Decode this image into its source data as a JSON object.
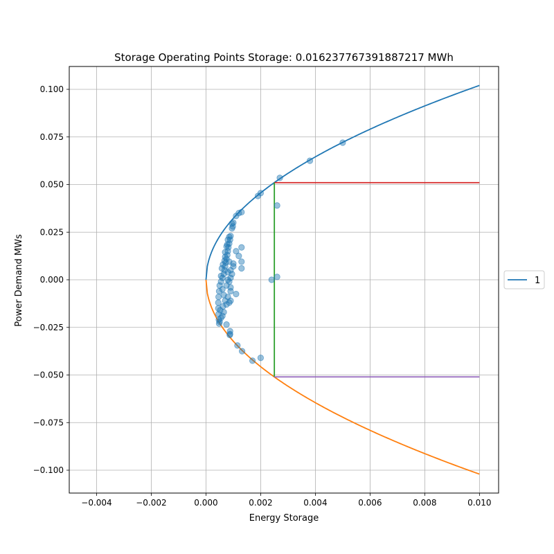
{
  "chart_data": {
    "type": "scatter",
    "title": "Storage Operating Points Storage: 0.016237767391887217 MWh",
    "xlabel": "Energy Storage",
    "ylabel": "Power Demand MWs",
    "xlim": [
      -0.005,
      0.0107
    ],
    "ylim": [
      -0.112,
      0.112
    ],
    "grid": true,
    "legend_position": "outside-right",
    "x_ticks": [
      -0.004,
      -0.002,
      0.0,
      0.002,
      0.004,
      0.006,
      0.008,
      0.01
    ],
    "x_tick_labels": [
      "−0.004",
      "−0.002",
      "0.000",
      "0.002",
      "0.004",
      "0.006",
      "0.008",
      "0.010"
    ],
    "y_ticks": [
      0.1,
      0.075,
      0.05,
      0.025,
      0.0,
      -0.025,
      -0.05,
      -0.075,
      -0.1
    ],
    "y_tick_labels": [
      "0.100",
      "0.075",
      "0.050",
      "0.025",
      "0.000",
      "−0.025",
      "−0.050",
      "−0.075",
      "−0.100"
    ],
    "legend": [
      {
        "label": "1",
        "color": "#1f77b4"
      }
    ],
    "curves": [
      {
        "color": "#1f77b4",
        "formula": "y = 1.0206*sqrt(x)",
        "x_range": [
          0.0,
          0.01
        ]
      },
      {
        "color": "#ff7f0e",
        "formula": "y = -1.0206*sqrt(x)",
        "x_range": [
          0.0,
          0.01
        ]
      }
    ],
    "lines": [
      {
        "color": "#d62728",
        "points": [
          [
            0.0025,
            0.051
          ],
          [
            0.01,
            0.051
          ]
        ]
      },
      {
        "color": "#2ca02c",
        "points": [
          [
            0.0025,
            0.051
          ],
          [
            0.0025,
            -0.051
          ]
        ]
      },
      {
        "color": "#9467bd",
        "points": [
          [
            0.0025,
            -0.051
          ],
          [
            0.01,
            -0.051
          ]
        ]
      }
    ],
    "scatter": {
      "color": "#1f77b4",
      "points": [
        [
          0.005,
          0.072
        ],
        [
          0.0038,
          0.0625
        ],
        [
          0.0027,
          0.0535
        ],
        [
          0.002,
          0.0455
        ],
        [
          0.0019,
          0.044
        ],
        [
          0.0026,
          0.039
        ],
        [
          0.0013,
          0.0355
        ],
        [
          0.0012,
          0.035
        ],
        [
          0.0011,
          0.0335
        ],
        [
          0.001,
          0.03
        ],
        [
          0.00098,
          0.028
        ],
        [
          0.00095,
          0.027
        ],
        [
          0.0009,
          0.023
        ],
        [
          0.00088,
          0.021
        ],
        [
          0.00085,
          0.019
        ],
        [
          0.00082,
          0.017
        ],
        [
          0.0008,
          0.015
        ],
        [
          0.00078,
          0.013
        ],
        [
          0.00075,
          0.011
        ],
        [
          0.00072,
          0.009
        ],
        [
          0.0007,
          0.007
        ],
        [
          0.00068,
          0.005
        ],
        [
          0.00065,
          0.003
        ],
        [
          0.0006,
          0.001
        ],
        [
          0.00055,
          -0.001
        ],
        [
          0.0005,
          -0.003
        ],
        [
          0.00048,
          -0.006
        ],
        [
          0.00046,
          -0.009
        ],
        [
          0.00045,
          -0.012
        ],
        [
          0.00045,
          -0.015
        ],
        [
          0.00046,
          -0.018
        ],
        [
          0.00047,
          -0.021
        ],
        [
          0.00048,
          -0.023
        ],
        [
          0.0013,
          0.017
        ],
        [
          0.0012,
          0.0125
        ],
        [
          0.0011,
          0.015
        ],
        [
          0.0013,
          0.0095
        ],
        [
          0.0013,
          0.006
        ],
        [
          0.001,
          0.0085
        ],
        [
          0.001,
          0.007
        ],
        [
          0.00095,
          0.003
        ],
        [
          0.0009,
          0.005
        ],
        [
          0.00085,
          0.0095
        ],
        [
          0.0009,
          0.001
        ],
        [
          0.00085,
          -0.001
        ],
        [
          0.0009,
          -0.004
        ],
        [
          0.0009,
          -0.006
        ],
        [
          0.0009,
          -0.011
        ],
        [
          0.00085,
          -0.012
        ],
        [
          0.0011,
          -0.0075
        ],
        [
          0.0008,
          -0.009
        ],
        [
          0.00075,
          -0.013
        ],
        [
          0.00065,
          -0.017
        ],
        [
          0.00055,
          -0.02
        ],
        [
          0.0005,
          -0.022
        ],
        [
          0.00075,
          -0.0235
        ],
        [
          0.00088,
          -0.027
        ],
        [
          0.00088,
          -0.0285
        ],
        [
          0.00087,
          -0.029
        ],
        [
          0.00115,
          -0.0345
        ],
        [
          0.00132,
          -0.0375
        ],
        [
          0.0017,
          -0.0425
        ],
        [
          0.002,
          -0.041
        ],
        [
          0.0024,
          0.0
        ],
        [
          0.0026,
          0.0015
        ],
        [
          0.00055,
          0.002
        ],
        [
          0.0006,
          -0.005
        ],
        [
          0.00065,
          -0.008
        ],
        [
          0.0007,
          0.012
        ],
        [
          0.00075,
          0.0175
        ],
        [
          0.0008,
          0.021
        ],
        [
          0.00085,
          0.0225
        ],
        [
          0.0007,
          -0.011
        ],
        [
          0.00062,
          -0.014
        ],
        [
          0.00058,
          0.006
        ],
        [
          0.00062,
          0.008
        ],
        [
          0.00068,
          0.01
        ],
        [
          0.0008,
          0.004
        ],
        [
          0.0008,
          0.0
        ],
        [
          0.00075,
          -0.003
        ],
        [
          0.00052,
          -0.016
        ],
        [
          0.0006,
          -0.019
        ],
        [
          0.0007,
          0.0145
        ],
        [
          0.00078,
          0.0185
        ],
        [
          0.00095,
          0.0295
        ]
      ]
    }
  }
}
